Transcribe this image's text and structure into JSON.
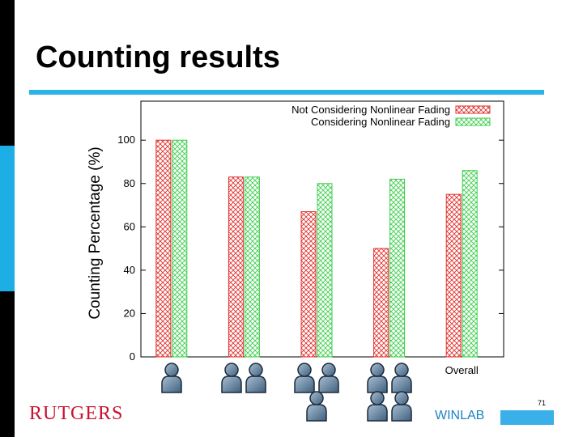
{
  "slide": {
    "title": "Counting results",
    "logo_text": "RUTGERS",
    "footer_lab": "WINLAB",
    "page_number": "71"
  },
  "icons": [
    "person-icon"
  ],
  "colors": {
    "accent": "#2bb3e8",
    "series_not_considering": "#e0302c",
    "series_considering": "#3ecf4e",
    "logo": "#c8102e"
  },
  "chart_data": {
    "type": "bar",
    "title": "",
    "xlabel": "",
    "ylabel": "Counting Percentage (%)",
    "ylim": [
      0,
      118
    ],
    "yticks": [
      0,
      20,
      40,
      60,
      80,
      100
    ],
    "categories": [
      "",
      "",
      "",
      "",
      "Overall"
    ],
    "category_people": [
      1,
      2,
      3,
      4,
      0
    ],
    "series": [
      {
        "name": "Not Considering Nonlinear Fading",
        "values": [
          100,
          83,
          67,
          50,
          75
        ]
      },
      {
        "name": "Considering Nonlinear Fading",
        "values": [
          100,
          83,
          80,
          82,
          86
        ]
      }
    ],
    "legend": "top-right",
    "grid": false
  }
}
